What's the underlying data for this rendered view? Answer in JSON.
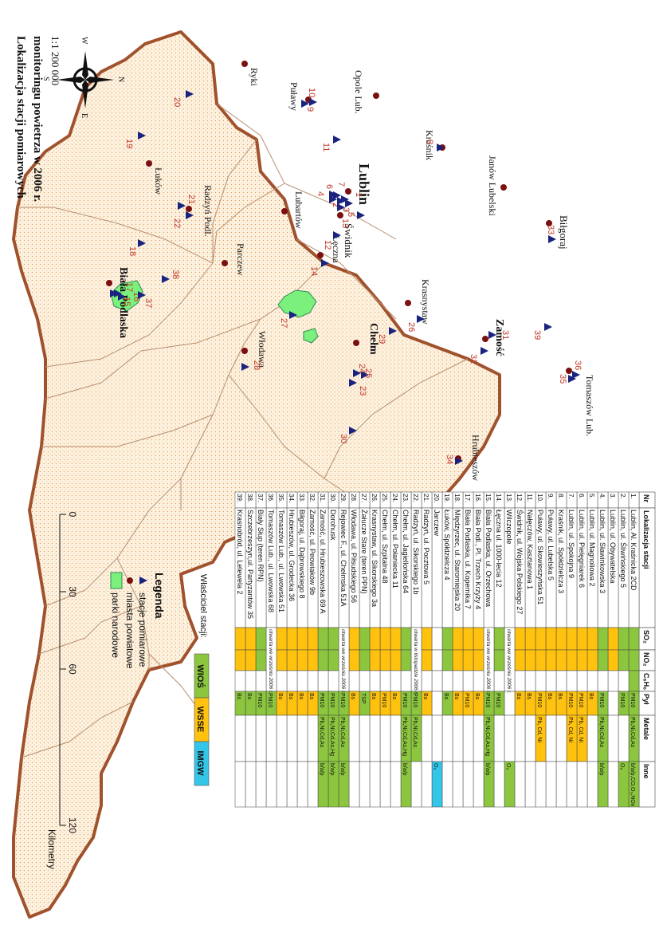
{
  "title_line1": "Lokalizacja stacji pomiarowych",
  "title_line2": "monitoringu powietrza w 2006 r.",
  "scale": "1:1 200 000",
  "compass": {
    "n": "N",
    "s": "S",
    "e": "E",
    "w": "W"
  },
  "cities": [
    {
      "id": "ryki",
      "label": "Ryki"
    },
    {
      "id": "pulawy",
      "label": "Puławy"
    },
    {
      "id": "opole",
      "label": "Opole Lub."
    },
    {
      "id": "lukow",
      "label": "Łuków"
    },
    {
      "id": "radzyn",
      "label": "Radzyń Podl."
    },
    {
      "id": "krasnik",
      "label": "Kraśnik"
    },
    {
      "id": "janow",
      "label": "Janów Lubelski"
    },
    {
      "id": "lublin",
      "label": "Lublin"
    },
    {
      "id": "lubartow",
      "label": "Lubartów"
    },
    {
      "id": "parczew",
      "label": "Parczew"
    },
    {
      "id": "bialapodlaska",
      "label": "Biała Podlaska"
    },
    {
      "id": "swidnik",
      "label": "Świdnik"
    },
    {
      "id": "leczna",
      "label": "Łęczna"
    },
    {
      "id": "bilgoraj",
      "label": "Biłgoraj"
    },
    {
      "id": "krasnystaw",
      "label": "Krasnystaw"
    },
    {
      "id": "zamosc",
      "label": "Zamość"
    },
    {
      "id": "chelm",
      "label": "Chełm"
    },
    {
      "id": "wlodawa",
      "label": "Włodawa"
    },
    {
      "id": "tomaszow",
      "label": "Tomaszów Lub."
    },
    {
      "id": "hrubieszow",
      "label": "Hrubieszów"
    }
  ],
  "station_labels": [
    "1",
    "2",
    "3",
    "4",
    "5",
    "6",
    "7",
    "8",
    "9",
    "10",
    "11",
    "12",
    "13",
    "14",
    "15",
    "16",
    "17",
    "18",
    "19",
    "20",
    "21",
    "22",
    "23",
    "24",
    "25",
    "26",
    "27",
    "28",
    "29",
    "30",
    "31",
    "32",
    "33",
    "34",
    "35",
    "36",
    "37",
    "38",
    "39"
  ],
  "table": {
    "headers": {
      "nr": "Nr",
      "loc": "Lokalizacja stacji",
      "so2": "SO₂",
      "no2": "NO₂",
      "c6h6": "C₆H₆",
      "pyl": "Pył",
      "metale": "Metale",
      "inne": "Inne"
    },
    "rows": [
      {
        "nr": "1.",
        "loc": "Lublin, Al. Kraśnicka 2CD",
        "so2": "G",
        "no2": "G",
        "c6h6": "G",
        "pyl": "PM10",
        "pyl_c": "G",
        "metale": "Pb,Ni,Cd,As",
        "met_c": "G",
        "inne": "b/a/p,CO,O₃,NOx",
        "inn_c": "G",
        "note": ""
      },
      {
        "nr": "2.",
        "loc": "Lublin, ul. Śliwińskiego 5",
        "so2": "G",
        "no2": "G",
        "c6h6": "",
        "pyl": "PM10",
        "pyl_c": "G",
        "metale": "",
        "met_c": "",
        "inne": "O₃",
        "inn_c": "G",
        "note": ""
      },
      {
        "nr": "3.",
        "loc": "Lublin, ul. Obywatelska",
        "so2": "Y",
        "no2": "Y",
        "c6h6": "",
        "pyl": "",
        "pyl_c": "",
        "metale": "",
        "met_c": "",
        "inne": "",
        "inn_c": "",
        "note": ""
      },
      {
        "nr": "4.",
        "loc": "Lublin, ul. Sławinkowska 3",
        "so2": "G",
        "no2": "G",
        "c6h6": "",
        "pyl": "PM10",
        "pyl_c": "G",
        "metale": "Pb,Ni,Cd,As",
        "met_c": "G",
        "inne": "b/a/p",
        "inn_c": "G",
        "note": ""
      },
      {
        "nr": "5.",
        "loc": "Lublin, ul. Magnoliowa 2",
        "so2": "Y",
        "no2": "Y",
        "c6h6": "",
        "pyl": "Bs",
        "pyl_c": "Y",
        "metale": "",
        "met_c": "",
        "inne": "",
        "inn_c": "",
        "note": ""
      },
      {
        "nr": "6.",
        "loc": "Lublin, ul. Pielęgniarek 6",
        "so2": "Y",
        "no2": "Y",
        "c6h6": "",
        "pyl": "PM10",
        "pyl_c": "Y",
        "metale": "Pb, Cd, Ni",
        "met_c": "Y",
        "inne": "",
        "inn_c": "",
        "note": ""
      },
      {
        "nr": "7.",
        "loc": "Lublin, ul. Spokojna 9",
        "so2": "Y",
        "no2": "Y",
        "c6h6": "",
        "pyl": "PM10",
        "pyl_c": "Y",
        "metale": "Pb, Cd, Ni",
        "met_c": "Y",
        "inne": "",
        "inn_c": "",
        "note": ""
      },
      {
        "nr": "8.",
        "loc": "Kraśnik, ul. Spółdzielcza 3",
        "so2": "Y",
        "no2": "Y",
        "c6h6": "",
        "pyl": "Bs",
        "pyl_c": "Y",
        "metale": "",
        "met_c": "",
        "inne": "",
        "inn_c": "",
        "note": ""
      },
      {
        "nr": "9.",
        "loc": "Puławy, ul. Lubelska 5",
        "so2": "Y",
        "no2": "Y",
        "c6h6": "",
        "pyl": "Bs",
        "pyl_c": "Y",
        "metale": "",
        "met_c": "",
        "inne": "",
        "inn_c": "",
        "note": ""
      },
      {
        "nr": "10.",
        "loc": "Puławy, ul. Skowieszyńska 51",
        "so2": "Y",
        "no2": "Y",
        "c6h6": "",
        "pyl": "PM10",
        "pyl_c": "Y",
        "metale": "Pb, Cd, Ni",
        "met_c": "Y",
        "inne": "",
        "inn_c": "",
        "note": ""
      },
      {
        "nr": "11.",
        "loc": "Nałęczów, Kasztanowa 1",
        "so2": "Y",
        "no2": "Y",
        "c6h6": "",
        "pyl": "Bs",
        "pyl_c": "Y",
        "metale": "",
        "met_c": "",
        "inne": "",
        "inn_c": "",
        "note": ""
      },
      {
        "nr": "12.",
        "loc": "Świdnik, ul. Wojska Polskiego 27",
        "so2": "Y",
        "no2": "Y",
        "c6h6": "",
        "pyl": "Bs",
        "pyl_c": "Y",
        "metale": "",
        "met_c": "",
        "inne": "",
        "inn_c": "",
        "note": ""
      },
      {
        "nr": "13.",
        "loc": "Wilczopole",
        "so2": "",
        "no2": "",
        "c6h6": "",
        "pyl": "",
        "pyl_c": "",
        "metale": "",
        "met_c": "",
        "inne": "O₃",
        "inn_c": "G",
        "note": "otwarta we wrześniu 2006 r."
      },
      {
        "nr": "14.",
        "loc": "Łęczna ul. 1000-lecia 12",
        "so2": "G",
        "no2": "G",
        "c6h6": "",
        "pyl": "PM10",
        "pyl_c": "G",
        "metale": "",
        "met_c": "",
        "inne": "",
        "inn_c": "",
        "note": ""
      },
      {
        "nr": "15.",
        "loc": "Biała Podlaska, ul. Orzechowa",
        "so2": "",
        "no2": "",
        "c6h6": "",
        "pyl": "PM10",
        "pyl_c": "G",
        "metale": "Pb,Ni,Cd,As,Hg",
        "met_c": "G",
        "inne": "b/a/p",
        "inn_c": "G",
        "note": "otwarta we wrześniu 2006 r."
      },
      {
        "nr": "16.",
        "loc": "Biała Podl., Pl. Trzech Krzyży 4",
        "so2": "Y",
        "no2": "Y",
        "c6h6": "",
        "pyl": "Bs",
        "pyl_c": "Y",
        "metale": "",
        "met_c": "",
        "inne": "",
        "inn_c": "",
        "note": ""
      },
      {
        "nr": "17.",
        "loc": "Biała Podlaska, ul. Kopernika 7",
        "so2": "Y",
        "no2": "Y",
        "c6h6": "",
        "pyl": "PM10",
        "pyl_c": "Y",
        "metale": "",
        "met_c": "",
        "inne": "",
        "inn_c": "",
        "note": ""
      },
      {
        "nr": "18.",
        "loc": "Międzyrzec, ul. Staromiejska 20",
        "so2": "Y",
        "no2": "Y",
        "c6h6": "",
        "pyl": "Bs",
        "pyl_c": "Y",
        "metale": "",
        "met_c": "",
        "inne": "",
        "inn_c": "",
        "note": ""
      },
      {
        "nr": "19.",
        "loc": "Łuków, Spółdzielcza 4",
        "so2": "G",
        "no2": "G",
        "c6h6": "",
        "pyl": "Bs",
        "pyl_c": "G",
        "metale": "",
        "met_c": "",
        "inne": "",
        "inn_c": "",
        "note": ""
      },
      {
        "nr": "20.",
        "loc": "Jarczew",
        "so2": "",
        "no2": "",
        "c6h6": "",
        "pyl": "",
        "pyl_c": "",
        "metale": "",
        "met_c": "",
        "inne": "O₃",
        "inn_c": "B",
        "note": ""
      },
      {
        "nr": "21.",
        "loc": "Radzyń, ul. Pocztowa 5",
        "so2": "Y",
        "no2": "Y",
        "c6h6": "",
        "pyl": "Bs",
        "pyl_c": "Y",
        "metale": "",
        "met_c": "",
        "inne": "",
        "inn_c": "",
        "note": ""
      },
      {
        "nr": "22.",
        "loc": "Radzyń, ul. Sikorskiego 1b",
        "so2": "",
        "no2": "",
        "c6h6": "",
        "pyl": "PM10",
        "pyl_c": "G",
        "metale": "Pb,Ni,Cd,As",
        "met_c": "G",
        "inne": "",
        "inn_c": "",
        "note": "otwarta w listopadzie 2006 r."
      },
      {
        "nr": "23.",
        "loc": "Chełm, ul. Jagiellońska 64",
        "so2": "G",
        "no2": "G",
        "c6h6": "",
        "pyl": "PM10",
        "pyl_c": "G",
        "metale": "Pb,Ni,Cd,As,Hg",
        "met_c": "G",
        "inne": "b/a/p",
        "inn_c": "G",
        "note": ""
      },
      {
        "nr": "24.",
        "loc": "Chełm, ul. Połaniecka 11",
        "so2": "Y",
        "no2": "Y",
        "c6h6": "",
        "pyl": "Bs",
        "pyl_c": "Y",
        "metale": "",
        "met_c": "",
        "inne": "",
        "inn_c": "",
        "note": ""
      },
      {
        "nr": "25.",
        "loc": "Chełm, ul. Szpitalna 48",
        "so2": "Y",
        "no2": "Y",
        "c6h6": "",
        "pyl": "PM10",
        "pyl_c": "Y",
        "metale": "",
        "met_c": "",
        "inne": "",
        "inn_c": "",
        "note": ""
      },
      {
        "nr": "26.",
        "loc": "Krasnystaw, ul. Sikorskiego 3a",
        "so2": "Y",
        "no2": "Y",
        "c6h6": "",
        "pyl": "Bs",
        "pyl_c": "Y",
        "metale": "",
        "met_c": "",
        "inne": "",
        "inn_c": "",
        "note": ""
      },
      {
        "nr": "27.",
        "loc": "Żałucze Stare (teren PPN)",
        "so2": "G",
        "no2": "G",
        "c6h6": "",
        "pyl": "TSP",
        "pyl_c": "G",
        "metale": "",
        "met_c": "",
        "inne": "",
        "inn_c": "",
        "note": ""
      },
      {
        "nr": "28.",
        "loc": "Włodawa, ul. Piłsudskiego 56",
        "so2": "Y",
        "no2": "Y",
        "c6h6": "",
        "pyl": "Bs",
        "pyl_c": "Y",
        "metale": "",
        "met_c": "",
        "inne": "",
        "inn_c": "",
        "note": ""
      },
      {
        "nr": "29.",
        "loc": "Rejowiec F., ul. Chełmska 51A",
        "so2": "",
        "no2": "",
        "c6h6": "",
        "pyl": "PM10",
        "pyl_c": "G",
        "metale": "Pb,Ni,Cd,As",
        "met_c": "G",
        "inne": "b/a/p",
        "inn_c": "G",
        "note": "otwarta we wrześniu 2006 r."
      },
      {
        "nr": "30.",
        "loc": "Dorohusk",
        "so2": "G",
        "no2": "G",
        "c6h6": "",
        "pyl": "PM10",
        "pyl_c": "G",
        "metale": "Pb,Ni,Cd,As,Hg",
        "met_c": "G",
        "inne": "b/a/p",
        "inn_c": "G",
        "note": ""
      },
      {
        "nr": "31.",
        "loc": "Zamość, ul. Hrubieszowska 69 A",
        "so2": "G",
        "no2": "G",
        "c6h6": "",
        "pyl": "PM10",
        "pyl_c": "G",
        "metale": "Pb,Ni,Cd,As",
        "met_c": "G",
        "inne": "b/a/p",
        "inn_c": "G",
        "note": ""
      },
      {
        "nr": "32.",
        "loc": "Zamość, ul. Peowiaków 9b",
        "so2": "Y",
        "no2": "Y",
        "c6h6": "",
        "pyl": "Bs",
        "pyl_c": "Y",
        "metale": "",
        "met_c": "",
        "inne": "",
        "inn_c": "",
        "note": ""
      },
      {
        "nr": "33.",
        "loc": "Biłgoraj, ul. Dąbrowskiego 8",
        "so2": "Y",
        "no2": "Y",
        "c6h6": "",
        "pyl": "Bs",
        "pyl_c": "Y",
        "metale": "",
        "met_c": "",
        "inne": "",
        "inn_c": "",
        "note": ""
      },
      {
        "nr": "34.",
        "loc": "Hrubieszów, ul. Grodecka 36",
        "so2": "Y",
        "no2": "Y",
        "c6h6": "",
        "pyl": "Bs",
        "pyl_c": "Y",
        "metale": "",
        "met_c": "",
        "inne": "",
        "inn_c": "",
        "note": ""
      },
      {
        "nr": "35.",
        "loc": "Tomaszów Lub., ul. Lwowska 51",
        "so2": "Y",
        "no2": "Y",
        "c6h6": "",
        "pyl": "Bs",
        "pyl_c": "Y",
        "metale": "",
        "met_c": "",
        "inne": "",
        "inn_c": "",
        "note": ""
      },
      {
        "nr": "36.",
        "loc": "Tomaszów Lub., ul. Lwowska 68",
        "so2": "",
        "no2": "",
        "c6h6": "",
        "pyl": "PM10",
        "pyl_c": "G",
        "metale": "",
        "met_c": "",
        "inne": "",
        "inn_c": "",
        "note": "otwarta we wrześniu 2006 r."
      },
      {
        "nr": "37.",
        "loc": "Biały Słup (teren RPN)",
        "so2": "G",
        "no2": "G",
        "c6h6": "",
        "pyl": "PM10",
        "pyl_c": "G",
        "metale": "",
        "met_c": "",
        "inne": "",
        "inn_c": "",
        "note": ""
      },
      {
        "nr": "38.",
        "loc": "Szczebrzeszyn,ul. Partyzantów 35",
        "so2": "Y",
        "no2": "Y",
        "c6h6": "",
        "pyl": "Bs",
        "pyl_c": "G",
        "metale": "",
        "met_c": "",
        "inne": "",
        "inn_c": "",
        "note": ""
      },
      {
        "nr": "39.",
        "loc": "Krasnobród, ul. Lelewela 2",
        "so2": "Y",
        "no2": "Y",
        "c6h6": "",
        "pyl": "Bs",
        "pyl_c": "G",
        "metale": "",
        "met_c": "",
        "inne": "",
        "inn_c": "",
        "note": ""
      }
    ]
  },
  "owner": {
    "label": "Właściciel stacji:",
    "wios": "WIOŚ",
    "wsse": "WSSE",
    "imgw": "IMGW"
  },
  "legend": {
    "title": "Legenda",
    "stations": "stacje pomiarowe",
    "cities": "miasta powiatowe",
    "parks": "parki narodowe"
  },
  "scalebar": {
    "ticks": [
      "0",
      "30",
      "60",
      "120"
    ],
    "unit": "Kilometry"
  },
  "colors": {
    "green": "#8cc63f",
    "yellow": "#ffc20e",
    "blue": "#33c6e8",
    "border": "#a0522d",
    "park": "#7cf07c",
    "station": "#1a237e",
    "city": "#7b1010",
    "label": "#c0392b"
  }
}
